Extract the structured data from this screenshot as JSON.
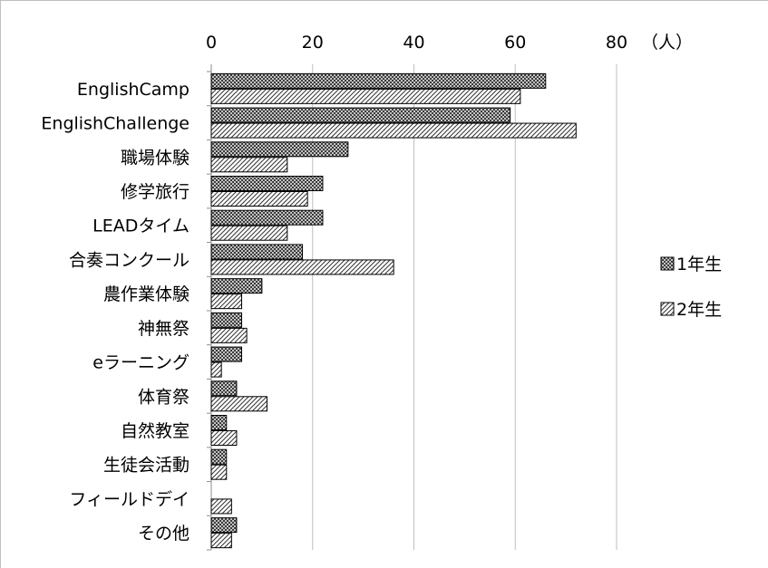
{
  "chart_data": {
    "type": "bar",
    "orientation": "horizontal",
    "categories": [
      "EnglishCamp",
      "EnglishChallenge",
      "職場体験",
      "修学旅行",
      "LEADタイム",
      "合奏コンクール",
      "農作業体験",
      "神無祭",
      "eラーニング",
      "体育祭",
      "自然教室",
      "生徒会活動",
      "フィールドデイ",
      "その他"
    ],
    "series": [
      {
        "name": "1年生",
        "pattern": "crosshatch",
        "values": [
          66,
          59,
          27,
          22,
          22,
          18,
          10,
          6,
          6,
          5,
          3,
          3,
          0,
          5
        ]
      },
      {
        "name": "2年生",
        "pattern": "diagonal",
        "values": [
          61,
          72,
          15,
          19,
          15,
          36,
          6,
          7,
          2,
          11,
          5,
          3,
          4,
          4
        ]
      }
    ],
    "xlim": [
      0,
      80
    ],
    "x_ticks": [
      0,
      20,
      40,
      60,
      80
    ],
    "x_axis_position": "top",
    "unit_label": "（人）",
    "grid": true,
    "legend_position": "right",
    "colors": {
      "bar_fill": "#ffffff",
      "pattern": "#333333",
      "grid": "#bfbfbf"
    }
  }
}
